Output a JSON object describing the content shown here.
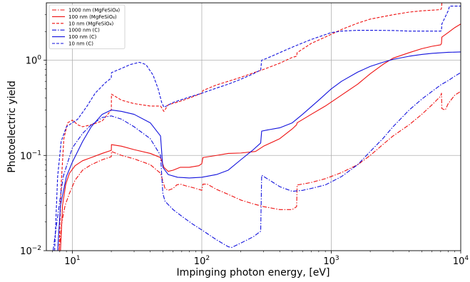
{
  "chart_data": {
    "type": "line",
    "title": "",
    "xlabel": "Impinging photon energy, [eV]",
    "ylabel": "Photoelectric yield",
    "xscale": "log",
    "yscale": "log",
    "xlim": [
      6.3,
      10000
    ],
    "ylim": [
      0.01,
      4.0
    ],
    "grid": true,
    "legend_position": "top-left",
    "x_ticks": [
      {
        "value": 10,
        "base": "10",
        "exp": "1"
      },
      {
        "value": 100,
        "base": "10",
        "exp": "2"
      },
      {
        "value": 1000,
        "base": "10",
        "exp": "3"
      },
      {
        "value": 10000,
        "base": "10",
        "exp": "4"
      }
    ],
    "y_ticks": [
      {
        "value": 0.01,
        "base": "10",
        "exp": "−2"
      },
      {
        "value": 0.1,
        "base": "10",
        "exp": "−1"
      },
      {
        "value": 1,
        "base": "10",
        "exp": "0"
      }
    ],
    "series": [
      {
        "name": "1000 nm (MgFeSiO₄)",
        "color": "#ee1111",
        "dash": "dashdot",
        "points": [
          [
            7.9,
            0.01
          ],
          [
            8.3,
            0.02
          ],
          [
            8.8,
            0.03
          ],
          [
            9.5,
            0.04
          ],
          [
            10.5,
            0.055
          ],
          [
            12,
            0.07
          ],
          [
            14,
            0.08
          ],
          [
            17,
            0.09
          ],
          [
            20,
            0.097
          ],
          [
            20.05,
            0.11
          ],
          [
            24,
            0.1
          ],
          [
            30,
            0.092
          ],
          [
            40,
            0.08
          ],
          [
            48,
            0.065
          ],
          [
            52,
            0.045
          ],
          [
            55,
            0.043
          ],
          [
            60,
            0.045
          ],
          [
            64,
            0.049
          ],
          [
            68,
            0.05
          ],
          [
            75,
            0.048
          ],
          [
            85,
            0.046
          ],
          [
            95,
            0.044
          ],
          [
            100,
            0.043
          ],
          [
            102,
            0.05
          ],
          [
            110,
            0.05
          ],
          [
            130,
            0.044
          ],
          [
            160,
            0.039
          ],
          [
            200,
            0.034
          ],
          [
            250,
            0.031
          ],
          [
            300,
            0.029
          ],
          [
            400,
            0.027
          ],
          [
            500,
            0.027
          ],
          [
            540,
            0.029
          ],
          [
            545,
            0.049
          ],
          [
            600,
            0.05
          ],
          [
            700,
            0.052
          ],
          [
            900,
            0.057
          ],
          [
            1200,
            0.066
          ],
          [
            1600,
            0.08
          ],
          [
            2000,
            0.1
          ],
          [
            2500,
            0.13
          ],
          [
            3000,
            0.16
          ],
          [
            4000,
            0.21
          ],
          [
            5000,
            0.27
          ],
          [
            6000,
            0.34
          ],
          [
            7000,
            0.42
          ],
          [
            7100,
            0.45
          ],
          [
            7150,
            0.31
          ],
          [
            7600,
            0.3
          ],
          [
            8000,
            0.35
          ],
          [
            9000,
            0.43
          ],
          [
            10000,
            0.47
          ]
        ]
      },
      {
        "name": "100 nm (MgFeSiO₄)",
        "color": "#ee1111",
        "dash": "solid",
        "points": [
          [
            8.1,
            0.01
          ],
          [
            8.4,
            0.03
          ],
          [
            8.9,
            0.05
          ],
          [
            9.5,
            0.065
          ],
          [
            10.5,
            0.078
          ],
          [
            12,
            0.088
          ],
          [
            14,
            0.095
          ],
          [
            17,
            0.105
          ],
          [
            20,
            0.113
          ],
          [
            20.05,
            0.13
          ],
          [
            24,
            0.125
          ],
          [
            30,
            0.115
          ],
          [
            40,
            0.105
          ],
          [
            48,
            0.095
          ],
          [
            51,
            0.075
          ],
          [
            55,
            0.068
          ],
          [
            60,
            0.07
          ],
          [
            68,
            0.075
          ],
          [
            80,
            0.075
          ],
          [
            95,
            0.078
          ],
          [
            100,
            0.082
          ],
          [
            102,
            0.095
          ],
          [
            130,
            0.1
          ],
          [
            160,
            0.105
          ],
          [
            200,
            0.106
          ],
          [
            260,
            0.11
          ],
          [
            300,
            0.125
          ],
          [
            400,
            0.15
          ],
          [
            500,
            0.19
          ],
          [
            540,
            0.21
          ],
          [
            545,
            0.22
          ],
          [
            700,
            0.27
          ],
          [
            900,
            0.33
          ],
          [
            1200,
            0.43
          ],
          [
            1600,
            0.56
          ],
          [
            2000,
            0.72
          ],
          [
            2500,
            0.9
          ],
          [
            3000,
            1.05
          ],
          [
            4000,
            1.2
          ],
          [
            5000,
            1.32
          ],
          [
            6000,
            1.4
          ],
          [
            7000,
            1.45
          ],
          [
            7100,
            1.5
          ],
          [
            7150,
            1.75
          ],
          [
            8000,
            1.95
          ],
          [
            9000,
            2.2
          ],
          [
            10000,
            2.4
          ]
        ]
      },
      {
        "name": "10 nm (MgFeSiO₄)",
        "color": "#ee1111",
        "dash": "dashed",
        "points": [
          [
            7.9,
            0.01
          ],
          [
            8.2,
            0.05
          ],
          [
            8.6,
            0.15
          ],
          [
            9.2,
            0.22
          ],
          [
            10,
            0.235
          ],
          [
            11,
            0.21
          ],
          [
            12,
            0.2
          ],
          [
            14,
            0.21
          ],
          [
            17,
            0.23
          ],
          [
            20,
            0.3
          ],
          [
            20.05,
            0.44
          ],
          [
            24,
            0.38
          ],
          [
            30,
            0.35
          ],
          [
            40,
            0.33
          ],
          [
            48,
            0.33
          ],
          [
            51,
            0.29
          ],
          [
            55,
            0.34
          ],
          [
            68,
            0.37
          ],
          [
            80,
            0.4
          ],
          [
            100,
            0.45
          ],
          [
            102,
            0.48
          ],
          [
            130,
            0.55
          ],
          [
            160,
            0.6
          ],
          [
            200,
            0.66
          ],
          [
            260,
            0.75
          ],
          [
            300,
            0.8
          ],
          [
            400,
            0.93
          ],
          [
            500,
            1.07
          ],
          [
            540,
            1.1
          ],
          [
            545,
            1.2
          ],
          [
            700,
            1.5
          ],
          [
            900,
            1.75
          ],
          [
            1200,
            2.1
          ],
          [
            1600,
            2.45
          ],
          [
            2000,
            2.7
          ],
          [
            3000,
            3.0
          ],
          [
            4000,
            3.2
          ],
          [
            5000,
            3.3
          ],
          [
            6000,
            3.35
          ],
          [
            7000,
            3.4
          ],
          [
            7100,
            3.5
          ],
          [
            7150,
            4.0
          ]
        ]
      },
      {
        "name": "1000 nm (C)",
        "color": "#1111dd",
        "dash": "dashdot",
        "points": [
          [
            7.1,
            0.01
          ],
          [
            7.6,
            0.02
          ],
          [
            8.5,
            0.06
          ],
          [
            10,
            0.12
          ],
          [
            12,
            0.17
          ],
          [
            14,
            0.21
          ],
          [
            17,
            0.25
          ],
          [
            20,
            0.26
          ],
          [
            24,
            0.24
          ],
          [
            30,
            0.2
          ],
          [
            40,
            0.15
          ],
          [
            48,
            0.1
          ],
          [
            50,
            0.04
          ],
          [
            52,
            0.033
          ],
          [
            60,
            0.027
          ],
          [
            70,
            0.023
          ],
          [
            85,
            0.019
          ],
          [
            100,
            0.0165
          ],
          [
            130,
            0.013
          ],
          [
            160,
            0.011
          ],
          [
            170,
            0.0108
          ],
          [
            200,
            0.012
          ],
          [
            250,
            0.014
          ],
          [
            285,
            0.016
          ],
          [
            290,
            0.062
          ],
          [
            320,
            0.057
          ],
          [
            400,
            0.047
          ],
          [
            500,
            0.042
          ],
          [
            600,
            0.043
          ],
          [
            700,
            0.045
          ],
          [
            900,
            0.049
          ],
          [
            1200,
            0.06
          ],
          [
            1600,
            0.08
          ],
          [
            2000,
            0.11
          ],
          [
            2500,
            0.15
          ],
          [
            3000,
            0.2
          ],
          [
            4000,
            0.3
          ],
          [
            5000,
            0.39
          ],
          [
            6000,
            0.47
          ],
          [
            7000,
            0.55
          ],
          [
            8000,
            0.61
          ],
          [
            9000,
            0.68
          ],
          [
            10000,
            0.74
          ]
        ]
      },
      {
        "name": "100 nm (C)",
        "color": "#1111dd",
        "dash": "solid",
        "points": [
          [
            7.7,
            0.01
          ],
          [
            8.1,
            0.03
          ],
          [
            9,
            0.06
          ],
          [
            10,
            0.085
          ],
          [
            12,
            0.14
          ],
          [
            14,
            0.2
          ],
          [
            17,
            0.27
          ],
          [
            20,
            0.3
          ],
          [
            24,
            0.29
          ],
          [
            30,
            0.27
          ],
          [
            40,
            0.22
          ],
          [
            48,
            0.16
          ],
          [
            50,
            0.075
          ],
          [
            55,
            0.063
          ],
          [
            65,
            0.059
          ],
          [
            80,
            0.058
          ],
          [
            100,
            0.059
          ],
          [
            130,
            0.063
          ],
          [
            160,
            0.07
          ],
          [
            200,
            0.09
          ],
          [
            250,
            0.115
          ],
          [
            285,
            0.135
          ],
          [
            290,
            0.18
          ],
          [
            320,
            0.185
          ],
          [
            400,
            0.195
          ],
          [
            500,
            0.22
          ],
          [
            600,
            0.27
          ],
          [
            800,
            0.38
          ],
          [
            1000,
            0.5
          ],
          [
            1200,
            0.6
          ],
          [
            1600,
            0.75
          ],
          [
            2000,
            0.86
          ],
          [
            2500,
            0.95
          ],
          [
            3000,
            1.02
          ],
          [
            4000,
            1.1
          ],
          [
            5000,
            1.15
          ],
          [
            6000,
            1.18
          ],
          [
            8000,
            1.21
          ],
          [
            10000,
            1.22
          ]
        ]
      },
      {
        "name": "10 nm (C)",
        "color": "#1111dd",
        "dash": "dashed",
        "points": [
          [
            7.3,
            0.01
          ],
          [
            7.7,
            0.06
          ],
          [
            8.2,
            0.14
          ],
          [
            9,
            0.2
          ],
          [
            10,
            0.22
          ],
          [
            11,
            0.24
          ],
          [
            13,
            0.33
          ],
          [
            15,
            0.45
          ],
          [
            18,
            0.58
          ],
          [
            20,
            0.65
          ],
          [
            20.05,
            0.74
          ],
          [
            24,
            0.82
          ],
          [
            28,
            0.9
          ],
          [
            33,
            0.95
          ],
          [
            37,
            0.9
          ],
          [
            42,
            0.7
          ],
          [
            46,
            0.5
          ],
          [
            49,
            0.36
          ],
          [
            51,
            0.32
          ],
          [
            60,
            0.36
          ],
          [
            80,
            0.41
          ],
          [
            100,
            0.45
          ],
          [
            130,
            0.51
          ],
          [
            160,
            0.56
          ],
          [
            200,
            0.63
          ],
          [
            250,
            0.72
          ],
          [
            285,
            0.79
          ],
          [
            290,
            1.0
          ],
          [
            320,
            1.05
          ],
          [
            400,
            1.2
          ],
          [
            500,
            1.37
          ],
          [
            700,
            1.65
          ],
          [
            1000,
            1.95
          ],
          [
            1200,
            2.02
          ],
          [
            1600,
            2.06
          ],
          [
            2000,
            2.06
          ],
          [
            3000,
            2.05
          ],
          [
            4000,
            2.02
          ],
          [
            5000,
            2.02
          ],
          [
            6000,
            2.02
          ],
          [
            7000,
            2.02
          ],
          [
            7100,
            2.05
          ],
          [
            7150,
            2.4
          ],
          [
            8000,
            3.3
          ],
          [
            8200,
            3.7
          ],
          [
            10000,
            3.7
          ]
        ]
      }
    ]
  }
}
